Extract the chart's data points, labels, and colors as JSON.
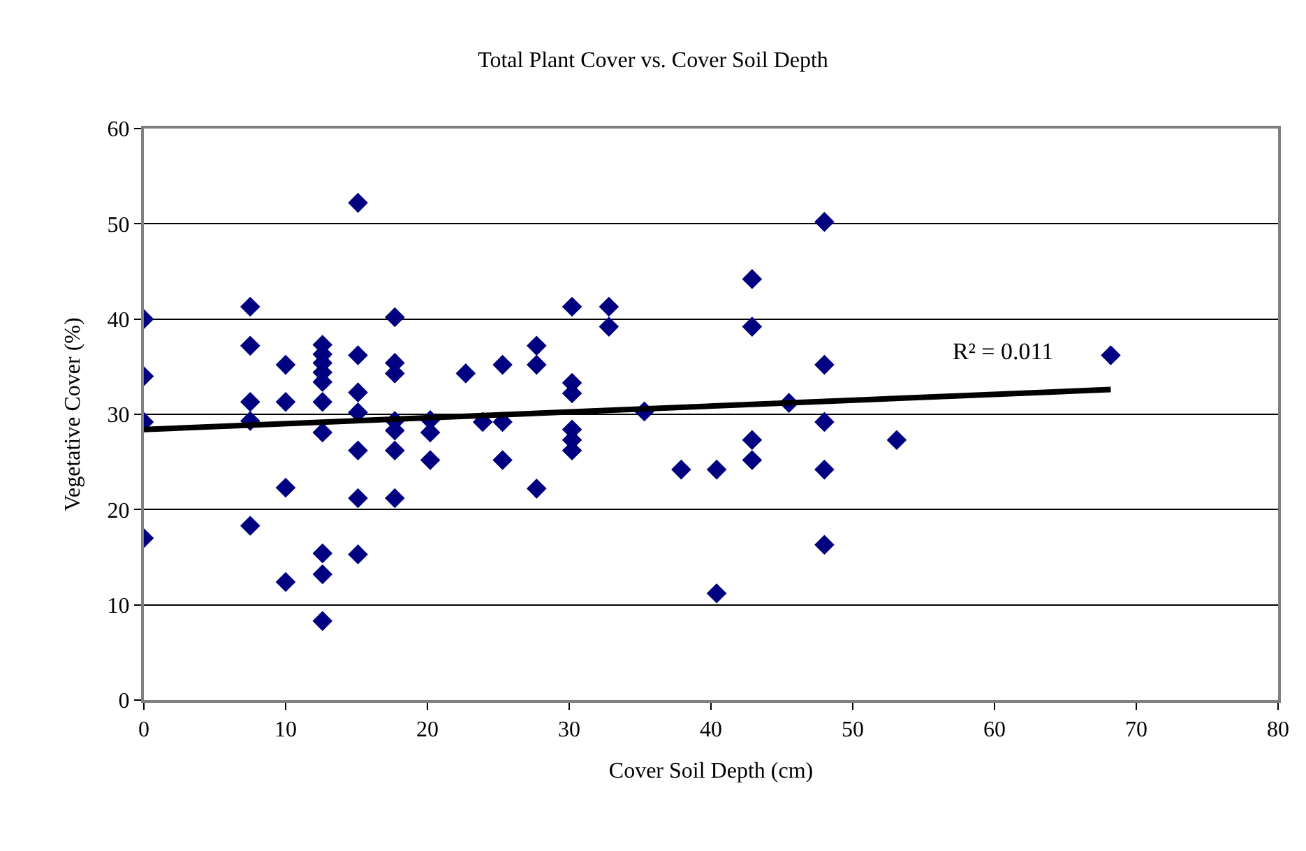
{
  "chart_data": {
    "type": "scatter",
    "title": "Total Plant Cover vs. Cover Soil Depth",
    "xlabel": "Cover Soil Depth (cm)",
    "ylabel": "Vegetative Cover (%)",
    "xlim": [
      0,
      80
    ],
    "xticks": [
      0,
      10,
      20,
      30,
      40,
      50,
      60,
      70,
      80
    ],
    "ylim": [
      0,
      60
    ],
    "yticks": [
      0,
      10,
      20,
      30,
      40,
      50,
      60
    ],
    "grid": "y",
    "marker": "diamond",
    "series": [
      {
        "color": "#000080",
        "x": [
          0,
          0,
          0,
          0,
          7.5,
          7.5,
          7.5,
          7.5,
          7.5,
          10,
          10,
          10,
          10,
          12.6,
          12.6,
          12.6,
          12.6,
          12.6,
          12.6,
          12.6,
          12.6,
          12.6,
          12.6,
          15.1,
          15.1,
          15.1,
          15.1,
          15.1,
          15.1,
          15.1,
          17.7,
          17.7,
          17.7,
          17.7,
          17.7,
          17.7,
          17.7,
          20.2,
          20.2,
          20.2,
          22.7,
          23.9,
          25.3,
          25.3,
          25.3,
          27.7,
          27.7,
          27.7,
          30.2,
          30.2,
          30.2,
          30.2,
          30.2,
          30.2,
          32.8,
          32.8,
          35.3,
          37.9,
          40.4,
          40.4,
          42.9,
          42.9,
          42.9,
          42.9,
          45.5,
          48,
          48,
          48,
          48,
          48,
          53.1,
          68.2
        ],
        "values": [
          40,
          34,
          29.2,
          17,
          41.3,
          37.2,
          31.3,
          29.3,
          18.3,
          35.2,
          31.3,
          22.3,
          12.4,
          37.3,
          36.3,
          35.4,
          34.4,
          33.4,
          31.3,
          28.1,
          15.4,
          13.2,
          8.3,
          52.2,
          36.2,
          32.3,
          30.2,
          26.2,
          21.2,
          15.3,
          40.2,
          35.4,
          34.3,
          29.3,
          28.3,
          26.2,
          21.2,
          29.4,
          28.1,
          25.2,
          34.3,
          29.2,
          35.2,
          29.2,
          25.2,
          37.2,
          35.2,
          22.2,
          41.3,
          33.3,
          32.2,
          28.4,
          27.3,
          26.2,
          41.3,
          39.2,
          30.3,
          24.2,
          24.2,
          11.2,
          44.2,
          39.2,
          27.3,
          25.2,
          31.2,
          50.2,
          35.2,
          29.2,
          24.2,
          16.3,
          27.3,
          36.2
        ]
      },
      {
        "type": "line",
        "color": "#000000",
        "marker": "none",
        "line_style": "solid",
        "x": [
          0,
          68.2
        ],
        "values": [
          28.4,
          32.6
        ]
      }
    ],
    "annotations": [
      "R² = 0.011"
    ]
  }
}
